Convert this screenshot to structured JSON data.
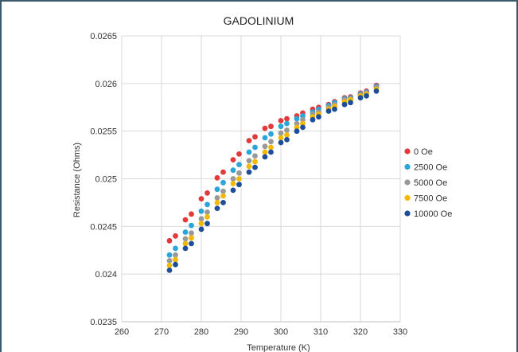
{
  "chart_data": {
    "type": "scatter",
    "title": "GADOLINIUM",
    "xlabel": "Temperature (K)",
    "ylabel": "Resistance (Ohms)",
    "xlim": [
      260,
      330
    ],
    "ylim": [
      0.0235,
      0.0265
    ],
    "x_ticks": [
      "260",
      "270",
      "280",
      "290",
      "300",
      "310",
      "320",
      "330"
    ],
    "y_ticks": [
      "0.0235",
      "0.024",
      "0.0245",
      "0.025",
      "0.0255",
      "0.026",
      "0.0265"
    ],
    "grid": true,
    "legend_position": "right",
    "series": [
      {
        "name": "0 Oe",
        "color": "#e03a3a",
        "points": [
          [
            272.0,
            0.02435
          ],
          [
            273.5,
            0.0244
          ],
          [
            276.0,
            0.02457
          ],
          [
            277.5,
            0.02463
          ],
          [
            280.0,
            0.02479
          ],
          [
            281.5,
            0.02485
          ],
          [
            284.0,
            0.02501
          ],
          [
            285.5,
            0.02507
          ],
          [
            288.0,
            0.0252
          ],
          [
            289.5,
            0.02526
          ],
          [
            292.0,
            0.0254
          ],
          [
            293.5,
            0.02544
          ],
          [
            296.0,
            0.02553
          ],
          [
            297.5,
            0.02555
          ],
          [
            300.0,
            0.02561
          ],
          [
            301.5,
            0.02563
          ],
          [
            304.0,
            0.02566
          ],
          [
            305.5,
            0.02569
          ],
          [
            308.0,
            0.02573
          ],
          [
            309.5,
            0.02575
          ],
          [
            312.0,
            0.02578
          ],
          [
            313.5,
            0.02581
          ],
          [
            316.0,
            0.02585
          ],
          [
            317.5,
            0.02586
          ],
          [
            320.0,
            0.0259
          ],
          [
            321.5,
            0.02592
          ],
          [
            324.0,
            0.02598
          ]
        ]
      },
      {
        "name": "2500 Oe",
        "color": "#2ba4d8",
        "points": [
          [
            272.0,
            0.0242
          ],
          [
            273.5,
            0.02427
          ],
          [
            276.0,
            0.02444
          ],
          [
            277.5,
            0.02451
          ],
          [
            280.0,
            0.02466
          ],
          [
            281.5,
            0.02473
          ],
          [
            284.0,
            0.02489
          ],
          [
            285.5,
            0.02496
          ],
          [
            288.0,
            0.02509
          ],
          [
            289.5,
            0.02515
          ],
          [
            292.0,
            0.02528
          ],
          [
            293.5,
            0.02533
          ],
          [
            296.0,
            0.02543
          ],
          [
            297.5,
            0.02547
          ],
          [
            300.0,
            0.02555
          ],
          [
            301.5,
            0.02558
          ],
          [
            304.0,
            0.02563
          ],
          [
            305.5,
            0.02566
          ],
          [
            308.0,
            0.0257
          ],
          [
            309.5,
            0.02573
          ],
          [
            312.0,
            0.02577
          ],
          [
            313.5,
            0.0258
          ],
          [
            316.0,
            0.02584
          ],
          [
            317.5,
            0.02585
          ],
          [
            320.0,
            0.02589
          ],
          [
            321.5,
            0.02591
          ],
          [
            324.0,
            0.02597
          ]
        ]
      },
      {
        "name": "5000 Oe",
        "color": "#999999",
        "points": [
          [
            272.0,
            0.02414
          ],
          [
            273.5,
            0.0242
          ],
          [
            276.0,
            0.02437
          ],
          [
            277.5,
            0.02443
          ],
          [
            280.0,
            0.02458
          ],
          [
            281.5,
            0.02465
          ],
          [
            284.0,
            0.0248
          ],
          [
            285.5,
            0.02487
          ],
          [
            288.0,
            0.025
          ],
          [
            289.5,
            0.02506
          ],
          [
            292.0,
            0.02519
          ],
          [
            293.5,
            0.02524
          ],
          [
            296.0,
            0.02534
          ],
          [
            297.5,
            0.02539
          ],
          [
            300.0,
            0.02548
          ],
          [
            301.5,
            0.02551
          ],
          [
            304.0,
            0.02558
          ],
          [
            305.5,
            0.02562
          ],
          [
            308.0,
            0.02568
          ],
          [
            309.5,
            0.0257
          ],
          [
            312.0,
            0.02575
          ],
          [
            313.5,
            0.02578
          ],
          [
            316.0,
            0.02583
          ],
          [
            317.5,
            0.02584
          ],
          [
            320.0,
            0.02588
          ],
          [
            321.5,
            0.0259
          ],
          [
            324.0,
            0.02596
          ]
        ]
      },
      {
        "name": "7500 Oe",
        "color": "#f5b800",
        "points": [
          [
            272.0,
            0.02409
          ],
          [
            273.5,
            0.02415
          ],
          [
            276.0,
            0.02432
          ],
          [
            277.5,
            0.02438
          ],
          [
            280.0,
            0.02453
          ],
          [
            281.5,
            0.0246
          ],
          [
            284.0,
            0.02475
          ],
          [
            285.5,
            0.02482
          ],
          [
            288.0,
            0.02495
          ],
          [
            289.5,
            0.025
          ],
          [
            292.0,
            0.02513
          ],
          [
            293.5,
            0.02518
          ],
          [
            296.0,
            0.02528
          ],
          [
            297.5,
            0.02533
          ],
          [
            300.0,
            0.02543
          ],
          [
            301.5,
            0.02546
          ],
          [
            304.0,
            0.02554
          ],
          [
            305.5,
            0.02558
          ],
          [
            308.0,
            0.02565
          ],
          [
            309.5,
            0.02568
          ],
          [
            312.0,
            0.02573
          ],
          [
            313.5,
            0.02576
          ],
          [
            316.0,
            0.02581
          ],
          [
            317.5,
            0.02583
          ],
          [
            320.0,
            0.02587
          ],
          [
            321.5,
            0.02589
          ],
          [
            324.0,
            0.02594
          ]
        ]
      },
      {
        "name": "10000 Oe",
        "color": "#1f4e99",
        "points": [
          [
            272.0,
            0.02404
          ],
          [
            273.5,
            0.0241
          ],
          [
            276.0,
            0.02427
          ],
          [
            277.5,
            0.02432
          ],
          [
            280.0,
            0.02447
          ],
          [
            281.5,
            0.02453
          ],
          [
            284.0,
            0.02469
          ],
          [
            285.5,
            0.02475
          ],
          [
            288.0,
            0.02488
          ],
          [
            289.5,
            0.02494
          ],
          [
            292.0,
            0.02507
          ],
          [
            293.5,
            0.02512
          ],
          [
            296.0,
            0.02523
          ],
          [
            297.5,
            0.02528
          ],
          [
            300.0,
            0.02538
          ],
          [
            301.5,
            0.02541
          ],
          [
            304.0,
            0.0255
          ],
          [
            305.5,
            0.02554
          ],
          [
            308.0,
            0.02562
          ],
          [
            309.5,
            0.02565
          ],
          [
            312.0,
            0.02571
          ],
          [
            313.5,
            0.02573
          ],
          [
            316.0,
            0.02578
          ],
          [
            317.5,
            0.0258
          ],
          [
            320.0,
            0.02585
          ],
          [
            321.5,
            0.02587
          ],
          [
            324.0,
            0.02592
          ]
        ]
      }
    ]
  }
}
